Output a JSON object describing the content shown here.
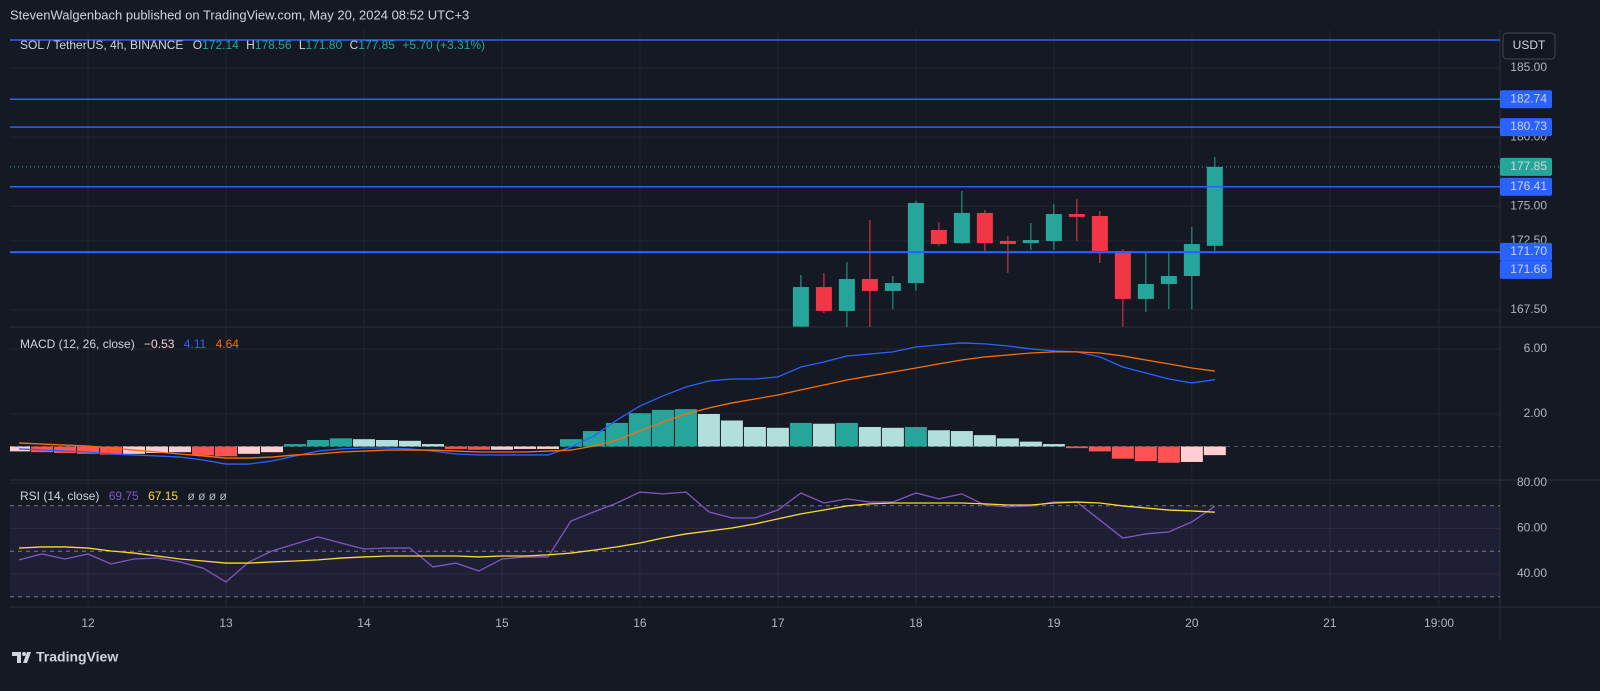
{
  "header": {
    "text": "StevenWalgenbach published on TradingView.com, May 20, 2024 08:52 UTC+3"
  },
  "toolbar": {
    "currency": "USDT"
  },
  "footer": {
    "brand": "TradingView"
  },
  "chart_data": [
    {
      "type": "candlestick",
      "legend": {
        "symbol": "SOL / TetherUS, 4h, BINANCE",
        "fields": [
          "O",
          "172.14",
          "H",
          "178.56",
          "L",
          "171.80",
          "C",
          "177.85"
        ],
        "change": "+5.70 (+3.31%)"
      },
      "x": [
        124,
        128,
        132,
        136,
        140,
        144,
        148,
        152,
        156,
        160,
        164,
        168,
        172,
        176,
        180,
        184,
        188,
        192,
        196
      ],
      "open": [
        166.3,
        169.16,
        167.43,
        169.74,
        168.88,
        169.45,
        173.29,
        172.34,
        174.52,
        172.49,
        172.34,
        172.49,
        174.44,
        174.3,
        171.77,
        168.3,
        169.38,
        169.96,
        172.14
      ],
      "high": [
        170.03,
        170.18,
        170.97,
        174.01,
        169.96,
        175.4,
        173.86,
        176.11,
        174.73,
        172.85,
        173.79,
        175.17,
        175.53,
        174.66,
        171.91,
        171.7,
        171.77,
        173.5,
        178.56
      ],
      "low": [
        166.2,
        167.28,
        166.2,
        166.2,
        167.57,
        168.9,
        172.13,
        172.27,
        171.77,
        170.18,
        171.84,
        171.84,
        172.49,
        170.9,
        166.3,
        167.36,
        167.57,
        167.57,
        171.8
      ],
      "close": [
        169.16,
        167.43,
        169.74,
        168.88,
        169.45,
        175.24,
        172.27,
        174.52,
        172.34,
        172.27,
        172.56,
        174.44,
        174.23,
        171.77,
        168.3,
        169.38,
        169.96,
        172.27,
        177.85
      ],
      "up_color": "#26a69a",
      "down_color": "#f23645",
      "xlim": [
        -13.57,
        245.6
      ],
      "xticks": [
        {
          "value": 0,
          "label": "12"
        },
        {
          "value": 24,
          "label": "13"
        },
        {
          "value": 48,
          "label": "14"
        },
        {
          "value": 72,
          "label": "15"
        },
        {
          "value": 96,
          "label": "16"
        },
        {
          "value": 120,
          "label": "17"
        },
        {
          "value": 144,
          "label": "18"
        },
        {
          "value": 168,
          "label": "19"
        },
        {
          "value": 192,
          "label": "20"
        },
        {
          "value": 216,
          "label": "21"
        },
        {
          "value": 235,
          "label": "19:00"
        }
      ],
      "ylim": [
        166.27,
        187.75
      ],
      "yticks": [
        {
          "value": 185,
          "label": "185.00"
        },
        {
          "value": 180,
          "label": "180.00"
        },
        {
          "value": 175,
          "label": "175.00"
        },
        {
          "value": 172.5,
          "label": "172.50"
        },
        {
          "value": 167.5,
          "label": "167.50"
        }
      ],
      "levels": [
        182.74,
        180.73,
        176.41,
        {
          "value": 171.7,
          "label": "171.70"
        },
        171.66
      ],
      "plain_levels": [
        187.03
      ],
      "level_color": "#2962ff",
      "grid": true
    },
    {
      "type": "macd",
      "legend": {
        "label": "MACD (12, 26, close)",
        "values": [
          "−0.53",
          "4.11",
          "4.64"
        ]
      },
      "x": [
        -12,
        -8,
        -4,
        0,
        4,
        8,
        12,
        16,
        20,
        24,
        28,
        32,
        36,
        40,
        44,
        48,
        52,
        56,
        60,
        64,
        68,
        72,
        76,
        80,
        84,
        88,
        92,
        96,
        100,
        104,
        108,
        112,
        116,
        120,
        124,
        128,
        132,
        136,
        140,
        144,
        148,
        152,
        156,
        160,
        164,
        168,
        172,
        176,
        180,
        184,
        188,
        192,
        196
      ],
      "histogram": {
        "values": [
          -0.3,
          -0.35,
          -0.4,
          -0.45,
          -0.5,
          -0.45,
          -0.4,
          -0.35,
          -0.55,
          -0.6,
          -0.45,
          -0.35,
          0.15,
          0.4,
          0.5,
          0.45,
          0.4,
          0.35,
          0.15,
          -0.15,
          -0.2,
          -0.2,
          -0.15,
          -0.15,
          0.45,
          0.95,
          1.45,
          2.05,
          2.25,
          2.3,
          2.0,
          1.6,
          1.2,
          1.15,
          1.45,
          1.4,
          1.45,
          1.2,
          1.15,
          1.2,
          1.0,
          0.95,
          0.7,
          0.5,
          0.3,
          0.15,
          -0.1,
          -0.3,
          -0.75,
          -0.9,
          -1.0,
          -0.95,
          -0.53
        ],
        "colors": [
          "#26a69a",
          "#b2dfdb",
          "#ffcdd2",
          "#ff5252"
        ]
      },
      "series": [
        {
          "color": "#2962ff",
          "values": [
            -0.15,
            -0.2,
            -0.28,
            -0.34,
            -0.46,
            -0.52,
            -0.58,
            -0.65,
            -0.83,
            -1.08,
            -1.08,
            -0.89,
            -0.58,
            -0.28,
            -0.15,
            -0.09,
            -0.09,
            -0.15,
            -0.28,
            -0.46,
            -0.52,
            -0.52,
            -0.52,
            -0.52,
            -0.03,
            0.65,
            1.63,
            2.49,
            3.11,
            3.66,
            4.03,
            4.15,
            4.15,
            4.28,
            4.89,
            5.2,
            5.57,
            5.69,
            5.82,
            6.12,
            6.25,
            6.37,
            6.31,
            6.18,
            6.0,
            5.88,
            5.82,
            5.51,
            4.89,
            4.52,
            4.15,
            3.91,
            4.11
          ]
        },
        {
          "color": "#ff6d00",
          "values": [
            0.22,
            0.15,
            0.09,
            0.03,
            -0.09,
            -0.22,
            -0.34,
            -0.46,
            -0.58,
            -0.71,
            -0.71,
            -0.65,
            -0.52,
            -0.46,
            -0.34,
            -0.28,
            -0.22,
            -0.22,
            -0.22,
            -0.28,
            -0.34,
            -0.34,
            -0.34,
            -0.28,
            -0.22,
            0.03,
            0.4,
            0.95,
            1.51,
            2.0,
            2.37,
            2.68,
            2.92,
            3.17,
            3.48,
            3.78,
            4.09,
            4.34,
            4.58,
            4.83,
            5.08,
            5.32,
            5.51,
            5.63,
            5.75,
            5.82,
            5.82,
            5.75,
            5.57,
            5.32,
            5.08,
            4.83,
            4.64
          ]
        }
      ],
      "ylim": [
        -2.06,
        7.35
      ],
      "yticks": [
        {
          "value": 6,
          "label": "6.00"
        },
        {
          "value": 2,
          "label": "2.00"
        }
      ],
      "grid": true
    },
    {
      "type": "rsi",
      "legend": {
        "label": "RSI (14, close)",
        "values": [
          "69.75",
          "67.15"
        ],
        "extra": "ø ø ø ø"
      },
      "x": [
        -12,
        -8,
        -4,
        0,
        4,
        8,
        12,
        16,
        20,
        24,
        28,
        32,
        36,
        40,
        44,
        48,
        52,
        56,
        60,
        64,
        68,
        72,
        76,
        80,
        84,
        88,
        92,
        96,
        100,
        104,
        108,
        112,
        116,
        120,
        124,
        128,
        132,
        136,
        140,
        144,
        148,
        152,
        156,
        160,
        164,
        168,
        172,
        176,
        180,
        184,
        188,
        192,
        196
      ],
      "series": [
        {
          "color": "#7e57c2",
          "values": [
            46.2,
            48.8,
            46.6,
            48.8,
            44.4,
            46.6,
            47.0,
            45.3,
            42.6,
            36.5,
            45.3,
            50.1,
            53.2,
            56.3,
            53.6,
            51.0,
            51.4,
            51.4,
            43.1,
            44.8,
            41.3,
            46.6,
            47.5,
            47.5,
            63.3,
            67.3,
            71.2,
            76.0,
            75.2,
            76.0,
            67.3,
            64.6,
            64.6,
            68.1,
            75.6,
            71.2,
            73.0,
            71.6,
            71.6,
            75.6,
            73.0,
            75.2,
            70.3,
            69.5,
            69.9,
            71.6,
            71.6,
            63.7,
            55.8,
            57.6,
            58.5,
            62.9,
            69.75
          ]
        },
        {
          "color": "#fdd835",
          "values": [
            51.4,
            51.9,
            51.9,
            51.4,
            50.1,
            49.2,
            47.9,
            46.6,
            45.7,
            44.8,
            44.8,
            45.3,
            45.7,
            46.2,
            47.0,
            47.5,
            47.9,
            47.9,
            47.9,
            47.9,
            47.5,
            47.9,
            47.9,
            48.4,
            49.2,
            50.5,
            51.9,
            53.6,
            55.8,
            57.6,
            58.9,
            60.2,
            62.0,
            64.2,
            66.4,
            68.1,
            69.9,
            70.8,
            71.2,
            71.2,
            71.2,
            71.2,
            70.8,
            70.3,
            70.3,
            71.2,
            71.6,
            71.2,
            69.9,
            69.0,
            68.1,
            67.7,
            67.15
          ]
        }
      ],
      "levels": [
        70,
        50,
        30
      ],
      "band_color": "#7e57c2",
      "ylim": [
        25.5,
        81.3
      ],
      "yticks": [
        {
          "value": 80,
          "label": "80.00"
        },
        {
          "value": 60,
          "label": "60.00"
        },
        {
          "value": 40,
          "label": "40.00"
        }
      ],
      "grid": true
    }
  ]
}
